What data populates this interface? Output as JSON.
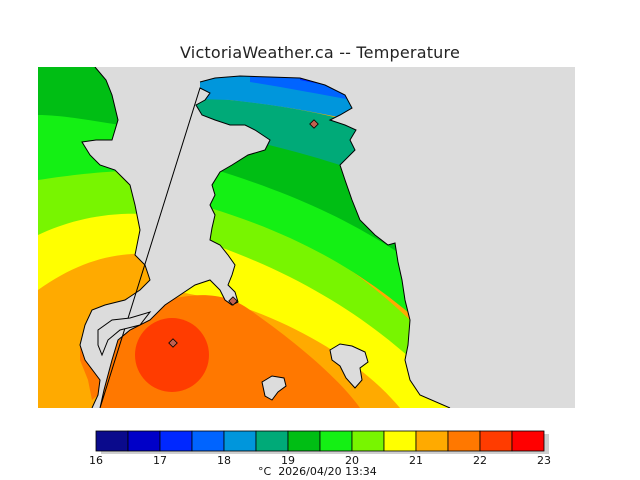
{
  "title": "VictoriaWeather.ca -- Temperature",
  "unit": "°C",
  "timestamp": "2026/04/20 13:34",
  "legend": {
    "ticks": [
      "16",
      "17",
      "18",
      "19",
      "20",
      "21",
      "22",
      "23"
    ],
    "bands": [
      {
        "from": 16.0,
        "to": 16.5,
        "color": "#0a0a8c"
      },
      {
        "from": 16.5,
        "to": 17.0,
        "color": "#0000c8"
      },
      {
        "from": 17.0,
        "to": 17.5,
        "color": "#0028ff"
      },
      {
        "from": 17.5,
        "to": 18.0,
        "color": "#0064ff"
      },
      {
        "from": 18.0,
        "to": 18.5,
        "color": "#0096dc"
      },
      {
        "from": 18.5,
        "to": 19.0,
        "color": "#00aa78"
      },
      {
        "from": 19.0,
        "to": 19.5,
        "color": "#00be14"
      },
      {
        "from": 19.5,
        "to": 20.0,
        "color": "#14f014"
      },
      {
        "from": 20.0,
        "to": 20.5,
        "color": "#78f500"
      },
      {
        "from": 20.5,
        "to": 21.0,
        "color": "#ffff00"
      },
      {
        "from": 21.0,
        "to": 21.5,
        "color": "#ffaa00"
      },
      {
        "from": 21.5,
        "to": 22.0,
        "color": "#ff7800"
      },
      {
        "from": 22.0,
        "to": 22.5,
        "color": "#ff3c00"
      },
      {
        "from": 22.5,
        "to": 23.0,
        "color": "#ff0000"
      }
    ]
  },
  "colors": {
    "water": "#dcdcdc",
    "coast": "#000000",
    "station": "#c06050"
  }
}
